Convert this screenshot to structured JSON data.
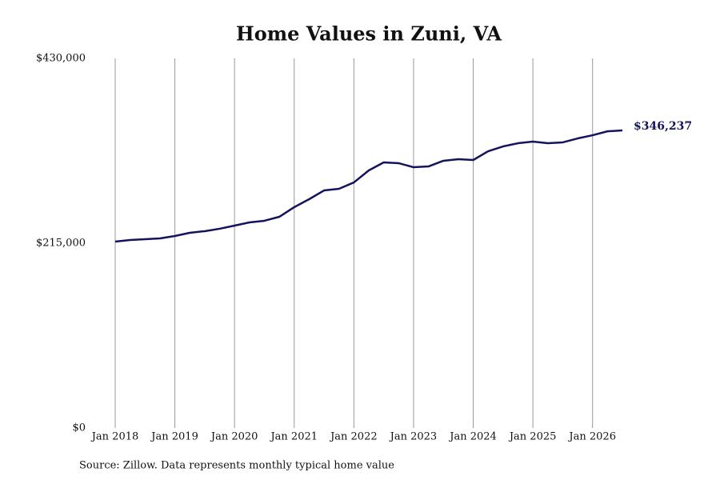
{
  "chart_data": {
    "type": "line",
    "title": "Home Values in Zuni, VA",
    "source": "Source: Zillow. Data represents monthly typical home value",
    "x": [
      "2018-01",
      "2018-04",
      "2018-07",
      "2018-10",
      "2019-01",
      "2019-04",
      "2019-07",
      "2019-10",
      "2020-01",
      "2020-04",
      "2020-07",
      "2020-10",
      "2021-01",
      "2021-04",
      "2021-07",
      "2021-10",
      "2022-01",
      "2022-04",
      "2022-07",
      "2022-10",
      "2023-01",
      "2023-04",
      "2023-07",
      "2023-10",
      "2024-01",
      "2024-04",
      "2024-07",
      "2024-10",
      "2025-01",
      "2025-04",
      "2025-07",
      "2025-10",
      "2026-01",
      "2026-04",
      "2026-07"
    ],
    "series": [
      {
        "color": "#14145c",
        "values": [
          216900,
          218700,
          219700,
          220600,
          223400,
          227100,
          229000,
          231800,
          235500,
          239200,
          241100,
          245700,
          256900,
          266200,
          276400,
          278300,
          285700,
          299700,
          309000,
          308100,
          303400,
          304300,
          310900,
          312700,
          311800,
          322000,
          327600,
          331300,
          333200,
          331300,
          332300,
          336900,
          340600,
          345200,
          346237
        ],
        "value_labels": [
          null,
          null,
          null,
          null,
          null,
          null,
          null,
          null,
          null,
          null,
          null,
          null,
          null,
          null,
          null,
          null,
          null,
          null,
          null,
          null,
          null,
          null,
          null,
          null,
          null,
          null,
          null,
          null,
          null,
          null,
          null,
          null,
          null,
          null,
          "$346,237"
        ]
      }
    ],
    "xlim": [
      "2018-01",
      "2026-07"
    ],
    "xticks": [
      {
        "value": "2018-01",
        "label": "Jan 2018"
      },
      {
        "value": "2019-01",
        "label": "Jan 2019"
      },
      {
        "value": "2020-01",
        "label": "Jan 2020"
      },
      {
        "value": "2021-01",
        "label": "Jan 2021"
      },
      {
        "value": "2022-01",
        "label": "Jan 2022"
      },
      {
        "value": "2023-01",
        "label": "Jan 2023"
      },
      {
        "value": "2024-01",
        "label": "Jan 2024"
      },
      {
        "value": "2025-01",
        "label": "Jan 2025"
      },
      {
        "value": "2026-01",
        "label": "Jan 2026"
      }
    ],
    "ylim": [
      0,
      430000
    ],
    "yticks": [
      {
        "value": 0,
        "label": "$0"
      },
      {
        "value": 215000,
        "label": "$215,000"
      },
      {
        "value": 430000,
        "label": "$430,000"
      }
    ],
    "grid": "x"
  }
}
